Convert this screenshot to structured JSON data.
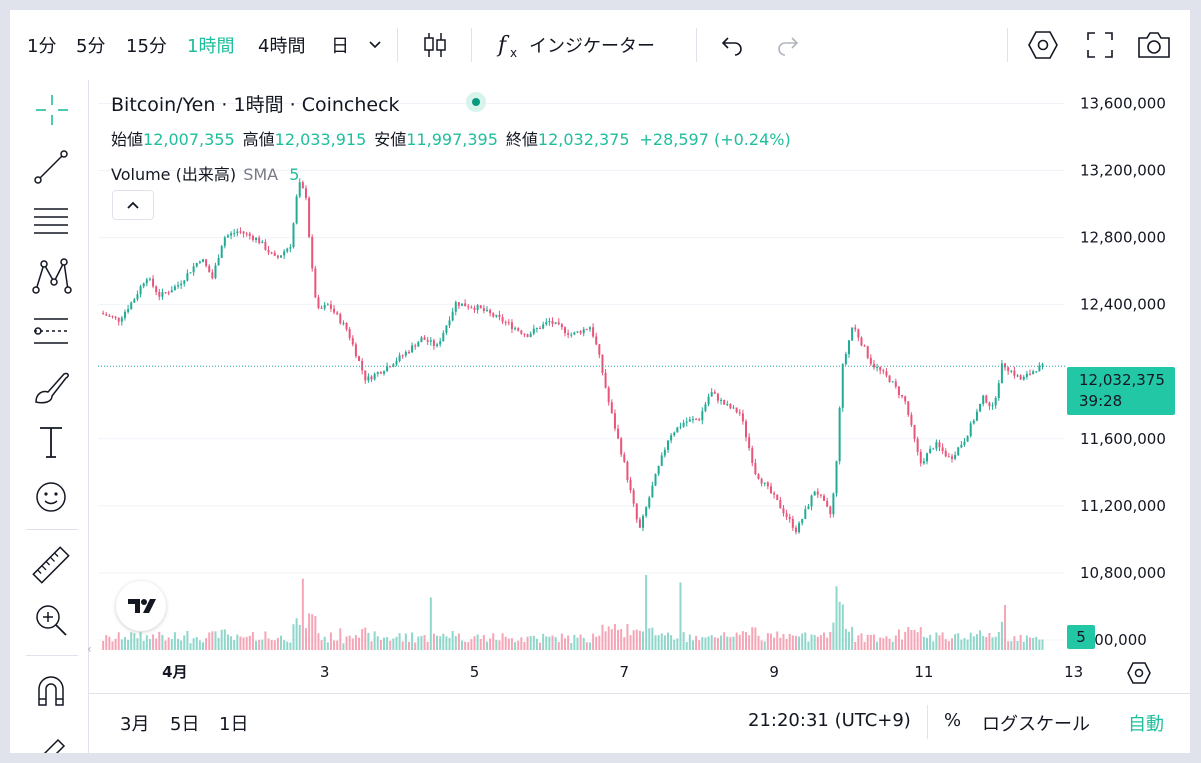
{
  "toolbar": {
    "intervals": [
      {
        "label": "1分",
        "active": false
      },
      {
        "label": "5分",
        "active": false
      },
      {
        "label": "15分",
        "active": false
      },
      {
        "label": "1時間",
        "active": true
      },
      {
        "label": "4時間",
        "active": false
      },
      {
        "label": "日",
        "active": false
      }
    ],
    "indicators_label": "インジケーター"
  },
  "legend": {
    "symbol_title": "Bitcoin/Yen · 1時間 · Coincheck",
    "open_label": "始値",
    "open_value": "12,007,355",
    "high_label": "高値",
    "high_value": "12,033,915",
    "low_label": "安値",
    "low_value": "11,997,395",
    "close_label": "終値",
    "close_value": "12,032,375",
    "change": "+28,597 (+0.24%)",
    "volume_label": "Volume (出来高)",
    "sma_label": "SMA",
    "sma_value": "5"
  },
  "price_scale": {
    "current_price": "12,032,375",
    "countdown": "39:28",
    "volume_badge": "5"
  },
  "bottom": {
    "ranges": [
      "3月",
      "5日",
      "1日"
    ],
    "time": "21:20:31 (UTC+9)",
    "percent": "%",
    "log_scale": "ログスケール",
    "auto": "自動"
  },
  "colors": {
    "up": "#26a69a",
    "up_candle": "#22ab94",
    "down": "#f23645",
    "down_candle": "#e8547a",
    "accent": "#1fbe9c",
    "grid": "#f0f3fa"
  },
  "chart_data": {
    "type": "candlestick",
    "y_ticks": [
      {
        "value": 13600000,
        "label": "13,600,000"
      },
      {
        "value": 13200000,
        "label": "13,200,000"
      },
      {
        "value": 12800000,
        "label": "12,800,000"
      },
      {
        "value": 12400000,
        "label": "12,400,000"
      },
      {
        "value": 11600000,
        "label": "11,600,000"
      },
      {
        "value": 11200000,
        "label": "11,200,000"
      },
      {
        "value": 10800000,
        "label": "10,800,000"
      },
      {
        "value": 10400000,
        "label": ",400,000"
      }
    ],
    "x_ticks": [
      {
        "label": "4月",
        "bold": true,
        "day": 1
      },
      {
        "label": "3",
        "day": 3
      },
      {
        "label": "5",
        "day": 5
      },
      {
        "label": "7",
        "day": 7
      },
      {
        "label": "9",
        "day": 9
      },
      {
        "label": "11",
        "day": 11
      },
      {
        "label": "13",
        "day": 13
      }
    ],
    "ylim": [
      10340000,
      13740000
    ],
    "current_price_value": 12032375,
    "close_path": [
      {
        "day": 0.0,
        "price": 12350000
      },
      {
        "day": 0.25,
        "price": 12310000
      },
      {
        "day": 0.45,
        "price": 12430000
      },
      {
        "day": 0.62,
        "price": 12570000
      },
      {
        "day": 0.8,
        "price": 12450000
      },
      {
        "day": 1.05,
        "price": 12520000
      },
      {
        "day": 1.35,
        "price": 12680000
      },
      {
        "day": 1.5,
        "price": 12560000
      },
      {
        "day": 1.65,
        "price": 12800000
      },
      {
        "day": 1.85,
        "price": 12840000
      },
      {
        "day": 2.1,
        "price": 12790000
      },
      {
        "day": 2.35,
        "price": 12670000
      },
      {
        "day": 2.55,
        "price": 12760000
      },
      {
        "day": 2.65,
        "price": 13130000
      },
      {
        "day": 2.75,
        "price": 13050000
      },
      {
        "day": 2.82,
        "price": 12650000
      },
      {
        "day": 2.9,
        "price": 12360000
      },
      {
        "day": 3.05,
        "price": 12400000
      },
      {
        "day": 3.3,
        "price": 12250000
      },
      {
        "day": 3.55,
        "price": 11950000
      },
      {
        "day": 3.8,
        "price": 12020000
      },
      {
        "day": 4.05,
        "price": 12100000
      },
      {
        "day": 4.3,
        "price": 12200000
      },
      {
        "day": 4.5,
        "price": 12150000
      },
      {
        "day": 4.75,
        "price": 12410000
      },
      {
        "day": 5.05,
        "price": 12380000
      },
      {
        "day": 5.35,
        "price": 12310000
      },
      {
        "day": 5.7,
        "price": 12220000
      },
      {
        "day": 6.0,
        "price": 12300000
      },
      {
        "day": 6.3,
        "price": 12220000
      },
      {
        "day": 6.55,
        "price": 12270000
      },
      {
        "day": 6.65,
        "price": 12120000
      },
      {
        "day": 6.8,
        "price": 11800000
      },
      {
        "day": 7.0,
        "price": 11450000
      },
      {
        "day": 7.2,
        "price": 11050000
      },
      {
        "day": 7.4,
        "price": 11350000
      },
      {
        "day": 7.6,
        "price": 11620000
      },
      {
        "day": 7.8,
        "price": 11700000
      },
      {
        "day": 8.0,
        "price": 11720000
      },
      {
        "day": 8.15,
        "price": 11880000
      },
      {
        "day": 8.35,
        "price": 11800000
      },
      {
        "day": 8.55,
        "price": 11750000
      },
      {
        "day": 8.75,
        "price": 11400000
      },
      {
        "day": 9.0,
        "price": 11250000
      },
      {
        "day": 9.3,
        "price": 11050000
      },
      {
        "day": 9.55,
        "price": 11300000
      },
      {
        "day": 9.75,
        "price": 11150000
      },
      {
        "day": 9.82,
        "price": 11350000
      },
      {
        "day": 9.9,
        "price": 12000000
      },
      {
        "day": 10.05,
        "price": 12280000
      },
      {
        "day": 10.3,
        "price": 12050000
      },
      {
        "day": 10.55,
        "price": 11950000
      },
      {
        "day": 10.75,
        "price": 11820000
      },
      {
        "day": 10.95,
        "price": 11450000
      },
      {
        "day": 11.15,
        "price": 11570000
      },
      {
        "day": 11.35,
        "price": 11480000
      },
      {
        "day": 11.55,
        "price": 11600000
      },
      {
        "day": 11.8,
        "price": 11850000
      },
      {
        "day": 11.92,
        "price": 11780000
      },
      {
        "day": 12.05,
        "price": 12050000
      },
      {
        "day": 12.3,
        "price": 11950000
      },
      {
        "day": 12.5,
        "price": 12020000
      },
      {
        "day": 12.6,
        "price": 12030000
      }
    ],
    "volume_spikes": [
      {
        "day": 2.72,
        "level": 0.95
      },
      {
        "day": 7.3,
        "level": 1.0
      },
      {
        "day": 7.75,
        "level": 0.9
      },
      {
        "day": 9.85,
        "level": 0.85
      },
      {
        "day": 4.4,
        "level": 0.7
      },
      {
        "day": 12.1,
        "level": 0.6
      }
    ]
  }
}
